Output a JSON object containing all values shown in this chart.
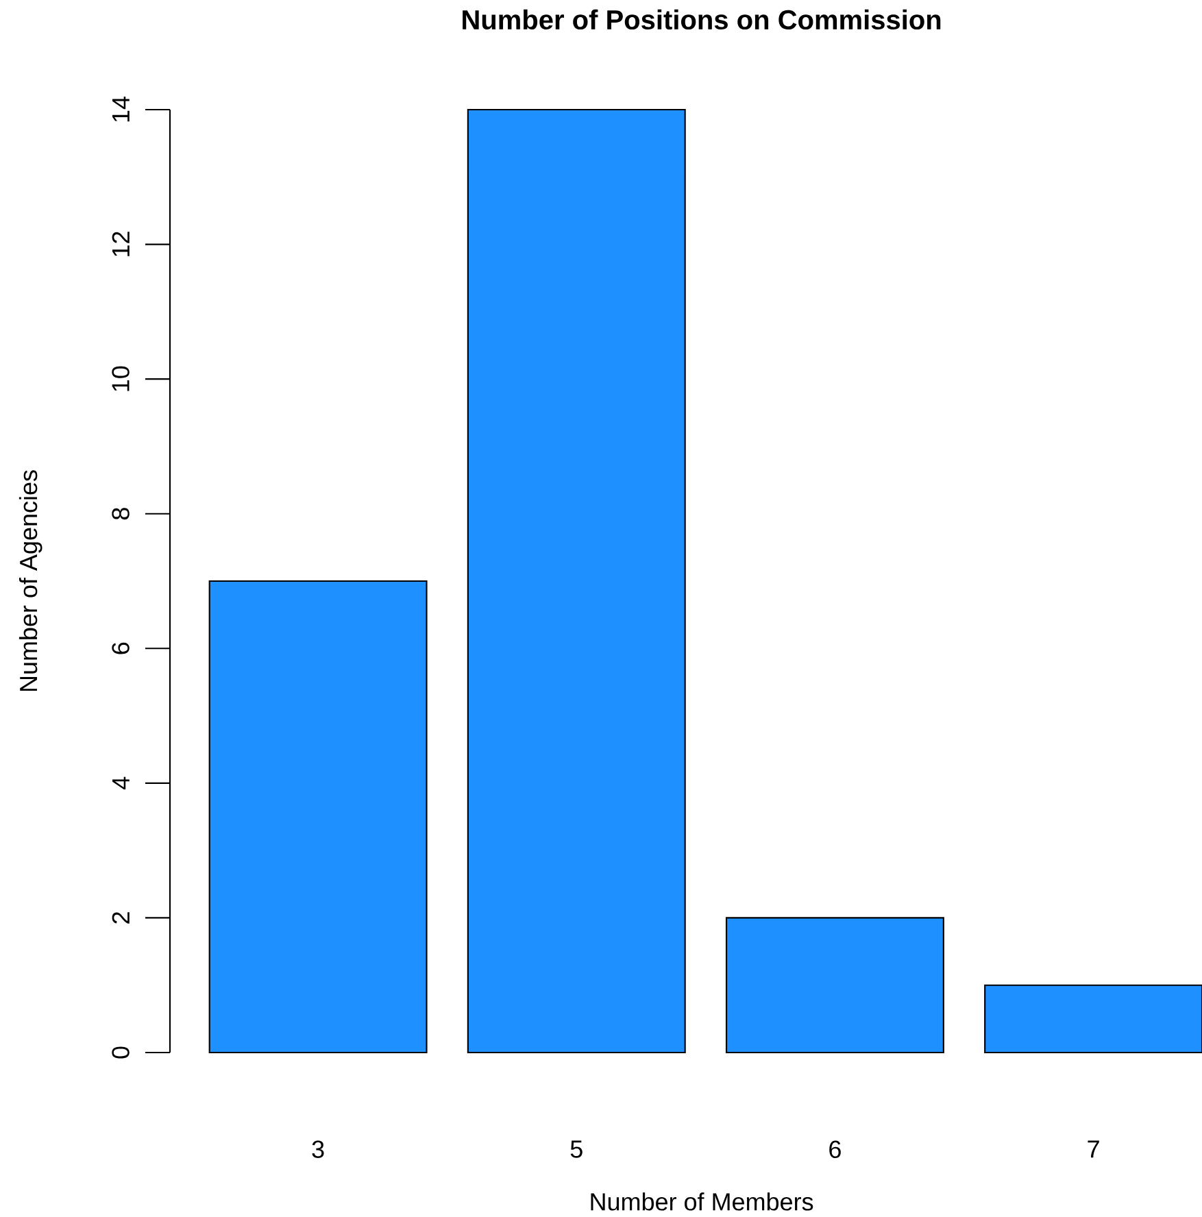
{
  "chart_data": {
    "type": "bar",
    "title": "Number of Positions on Commission",
    "xlabel": "Number of Members",
    "ylabel": "Number of Agencies",
    "categories": [
      "3",
      "5",
      "6",
      "7"
    ],
    "values": [
      7,
      14,
      2,
      1
    ],
    "color": "#1e90ff",
    "ylim": [
      0,
      14
    ],
    "yticks": [
      0,
      2,
      4,
      6,
      8,
      10,
      12,
      14
    ]
  }
}
